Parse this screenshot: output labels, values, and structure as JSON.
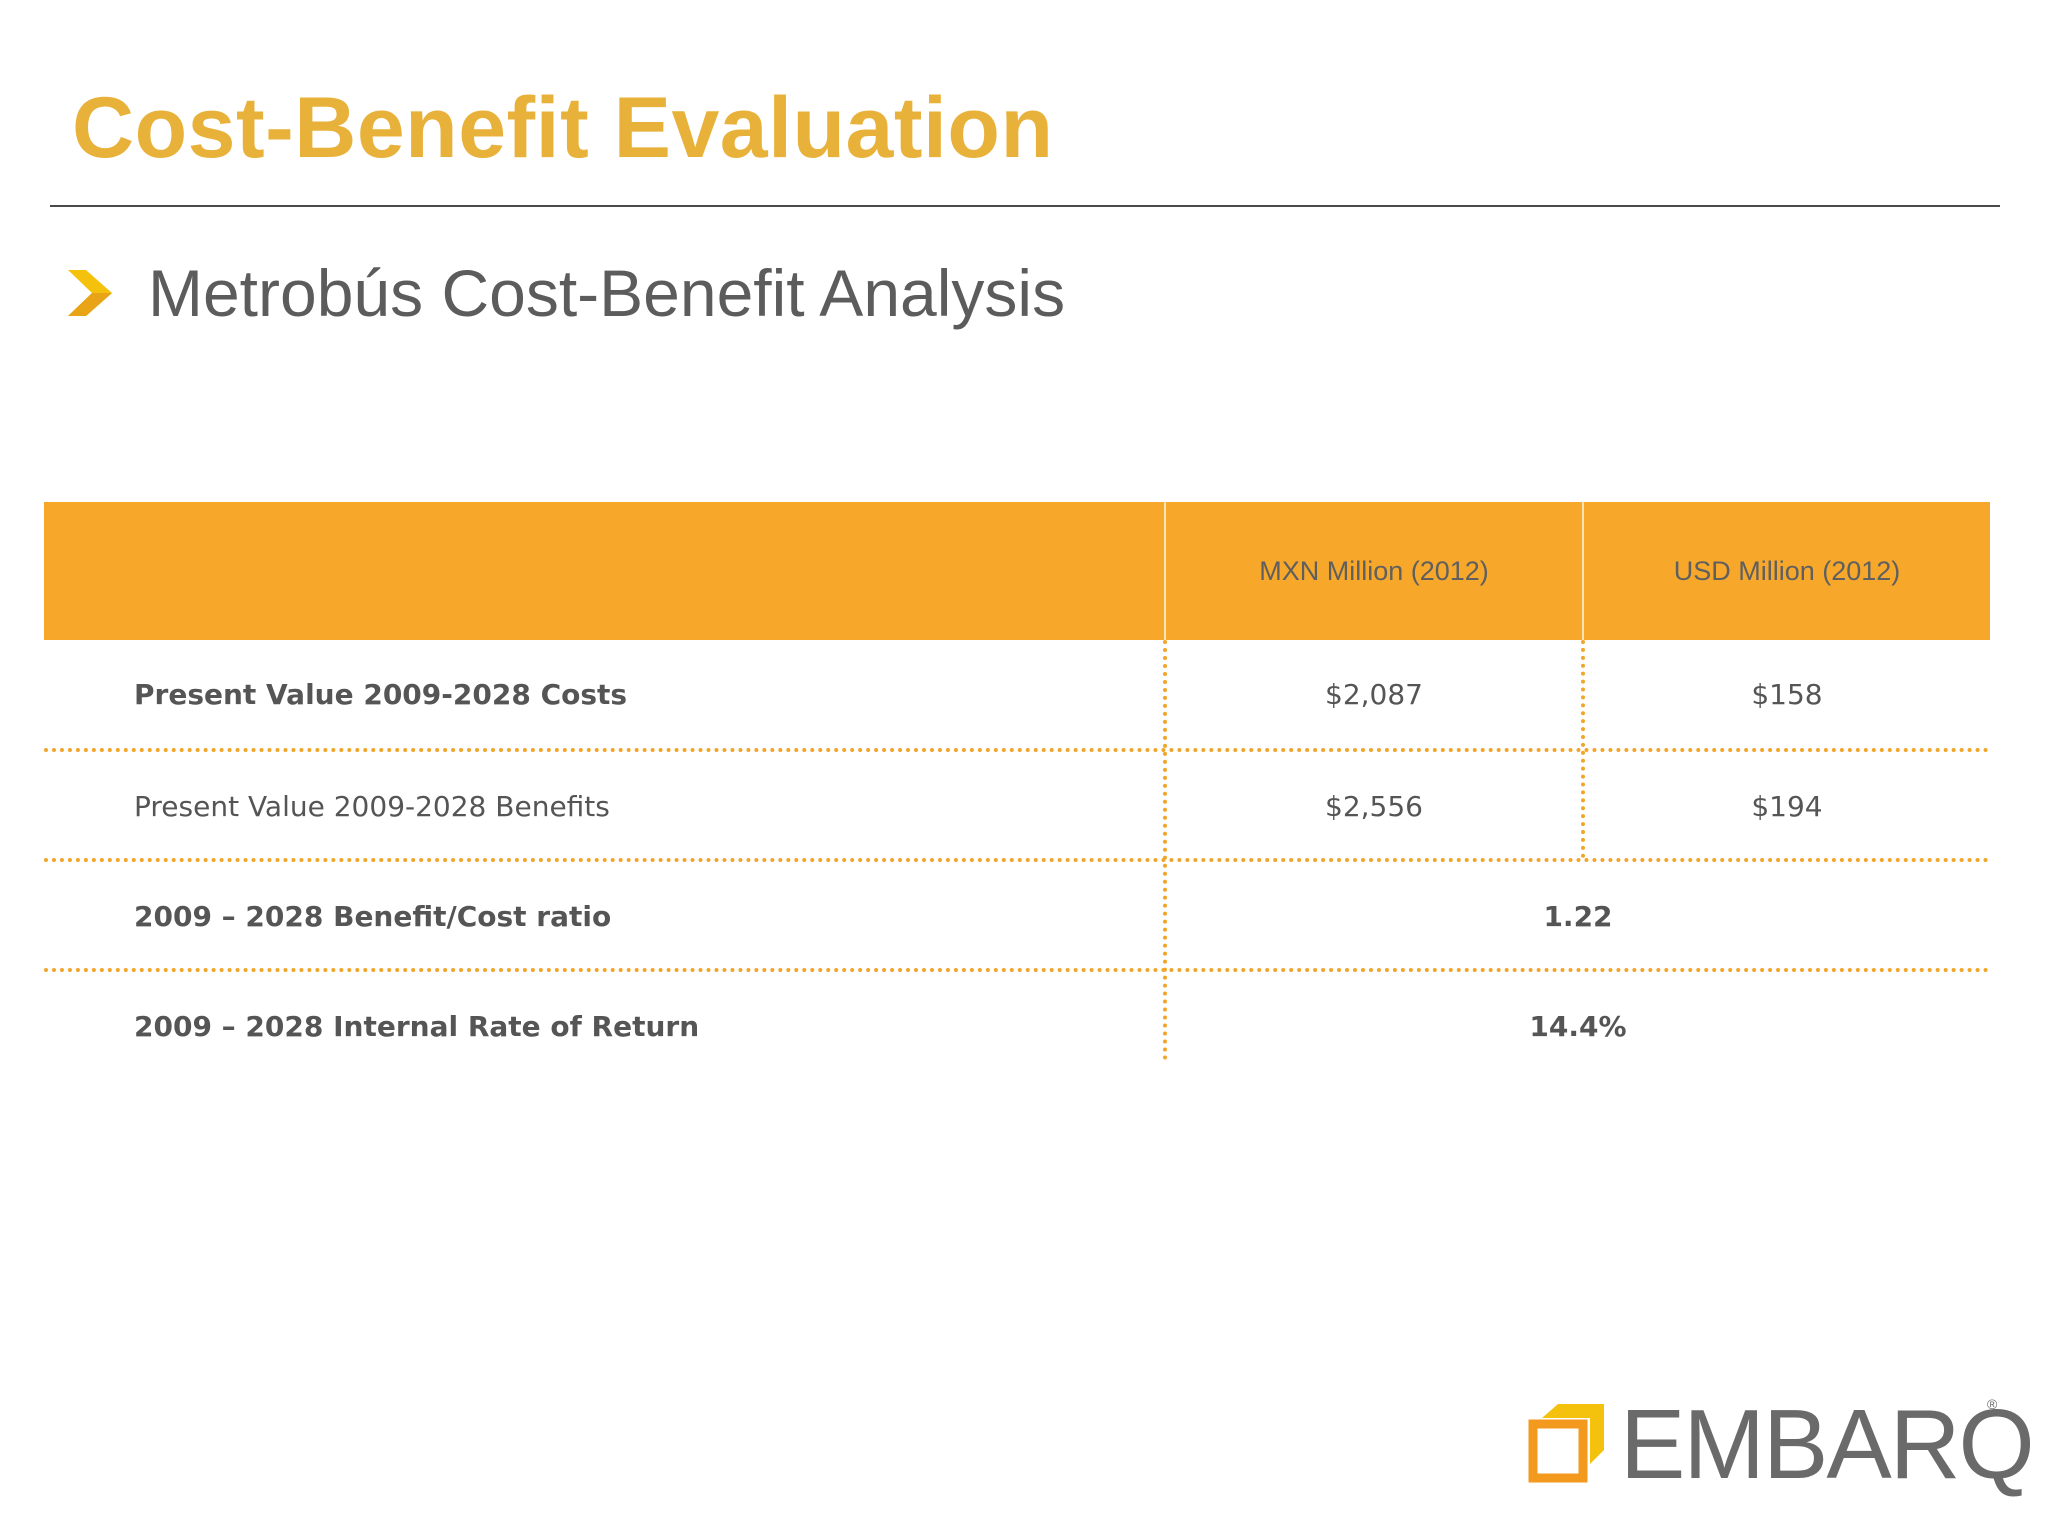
{
  "slide": {
    "title": "Cost-Benefit Evaluation",
    "bullet": "Metrobús Cost-Benefit Analysis"
  },
  "table": {
    "columns": [
      "",
      "MXN Million (2012)",
      "USD Million (2012)"
    ],
    "rows": [
      {
        "label": "Present Value 2009-2028 Costs",
        "mxn": "$2,087",
        "usd": "$158",
        "bold": true
      },
      {
        "label": "Present Value 2009-2028 Benefits",
        "mxn": "$2,556",
        "usd": "$194",
        "bold": false
      },
      {
        "label": "2009 – 2028 Benefit/Cost ratio",
        "value": "1.22",
        "bold": true
      },
      {
        "label": "2009 – 2028 Internal Rate of Return",
        "value": "14.4%",
        "bold": true
      }
    ]
  },
  "logo": {
    "text": "EMBARQ",
    "registered": "®"
  },
  "colors": {
    "title": "#E8B23A",
    "header_fill": "#F7A82B",
    "dotted_rule": "#F2A52B",
    "text_gray": "#555555",
    "logo_yellow": "#F4C20D",
    "logo_orange": "#F39A1E"
  },
  "icons": [
    "chevron-right-icon",
    "embarq-logo-mark"
  ]
}
